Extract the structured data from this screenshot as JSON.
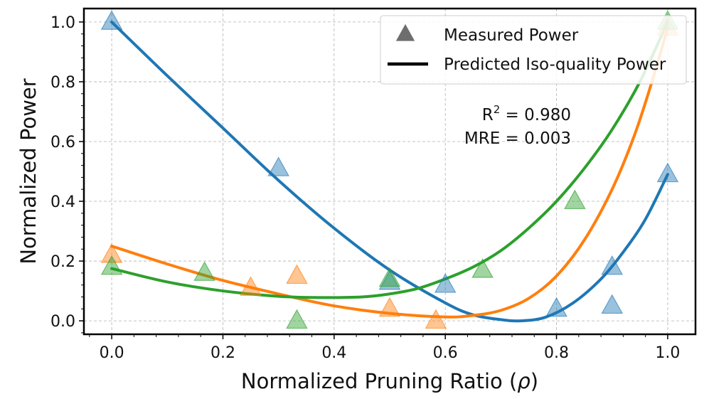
{
  "chart_data": {
    "type": "scatter",
    "xlabel": "Normalized Pruning Ratio (",
    "xlabel_symbol": "ρ",
    "xlabel_close": ")",
    "ylabel": "Normalized Power",
    "xlim": [
      -0.05,
      1.05
    ],
    "ylim": [
      -0.045,
      1.045
    ],
    "xticks": [
      0.0,
      0.2,
      0.4,
      0.6,
      0.8,
      1.0
    ],
    "xtick_labels": [
      "0.0",
      "0.2",
      "0.4",
      "0.6",
      "0.8",
      "1.0"
    ],
    "yticks": [
      0.0,
      0.2,
      0.4,
      0.6,
      0.8,
      1.0
    ],
    "ytick_labels": [
      "0.0",
      "0.2",
      "0.4",
      "0.6",
      "0.8",
      "1.0"
    ],
    "grid": true,
    "legend": {
      "position": "top-right",
      "entries": [
        {
          "label": "Measured Power",
          "kind": "marker",
          "color": "#555555"
        },
        {
          "label": "Predicted Iso-quality Power",
          "kind": "line",
          "color": "#000000"
        }
      ]
    },
    "annotations": {
      "r2_label": "R",
      "r2_sup": "2",
      "r2_value": " = 0.980",
      "mre": "MRE = 0.003"
    },
    "series": [
      {
        "name": "blue",
        "color": "#1f77b4",
        "points": [
          [
            0.0,
            1.0
          ],
          [
            0.3,
            0.51
          ],
          [
            0.5,
            0.13
          ],
          [
            0.6,
            0.12
          ],
          [
            0.8,
            0.04
          ],
          [
            0.9,
            0.18
          ],
          [
            0.9,
            0.05
          ],
          [
            1.0,
            0.49
          ]
        ],
        "curve": [
          [
            0.0,
            1.0
          ],
          [
            0.1,
            0.82
          ],
          [
            0.2,
            0.645
          ],
          [
            0.3,
            0.47
          ],
          [
            0.4,
            0.31
          ],
          [
            0.5,
            0.17
          ],
          [
            0.6,
            0.06
          ],
          [
            0.65,
            0.02
          ],
          [
            0.7,
            0.004
          ],
          [
            0.735,
            0.0
          ],
          [
            0.78,
            0.012
          ],
          [
            0.83,
            0.06
          ],
          [
            0.88,
            0.14
          ],
          [
            0.92,
            0.23
          ],
          [
            0.96,
            0.34
          ],
          [
            1.0,
            0.49
          ]
        ]
      },
      {
        "name": "orange",
        "color": "#ff7f0e",
        "points": [
          [
            0.0,
            0.22
          ],
          [
            0.25,
            0.11
          ],
          [
            0.333,
            0.15
          ],
          [
            0.5,
            0.04
          ],
          [
            0.583,
            0.0
          ],
          [
            1.0,
            0.98
          ]
        ],
        "curve": [
          [
            0.0,
            0.25
          ],
          [
            0.1,
            0.19
          ],
          [
            0.2,
            0.135
          ],
          [
            0.3,
            0.09
          ],
          [
            0.4,
            0.05
          ],
          [
            0.5,
            0.025
          ],
          [
            0.6,
            0.013
          ],
          [
            0.65,
            0.018
          ],
          [
            0.7,
            0.035
          ],
          [
            0.75,
            0.075
          ],
          [
            0.8,
            0.15
          ],
          [
            0.85,
            0.27
          ],
          [
            0.9,
            0.44
          ],
          [
            0.94,
            0.62
          ],
          [
            0.97,
            0.79
          ],
          [
            1.0,
            0.98
          ]
        ]
      },
      {
        "name": "green",
        "color": "#2ca02c",
        "points": [
          [
            0.0,
            0.18
          ],
          [
            0.167,
            0.16
          ],
          [
            0.333,
            0.0
          ],
          [
            0.5,
            0.14
          ],
          [
            0.667,
            0.17
          ],
          [
            0.833,
            0.4
          ],
          [
            1.0,
            1.0
          ]
        ],
        "curve": [
          [
            0.0,
            0.175
          ],
          [
            0.1,
            0.13
          ],
          [
            0.2,
            0.1
          ],
          [
            0.3,
            0.082
          ],
          [
            0.37,
            0.078
          ],
          [
            0.45,
            0.08
          ],
          [
            0.5,
            0.09
          ],
          [
            0.55,
            0.108
          ],
          [
            0.6,
            0.14
          ],
          [
            0.65,
            0.18
          ],
          [
            0.7,
            0.235
          ],
          [
            0.75,
            0.31
          ],
          [
            0.8,
            0.4
          ],
          [
            0.85,
            0.51
          ],
          [
            0.9,
            0.64
          ],
          [
            0.95,
            0.8
          ],
          [
            1.0,
            1.0
          ]
        ]
      }
    ]
  }
}
